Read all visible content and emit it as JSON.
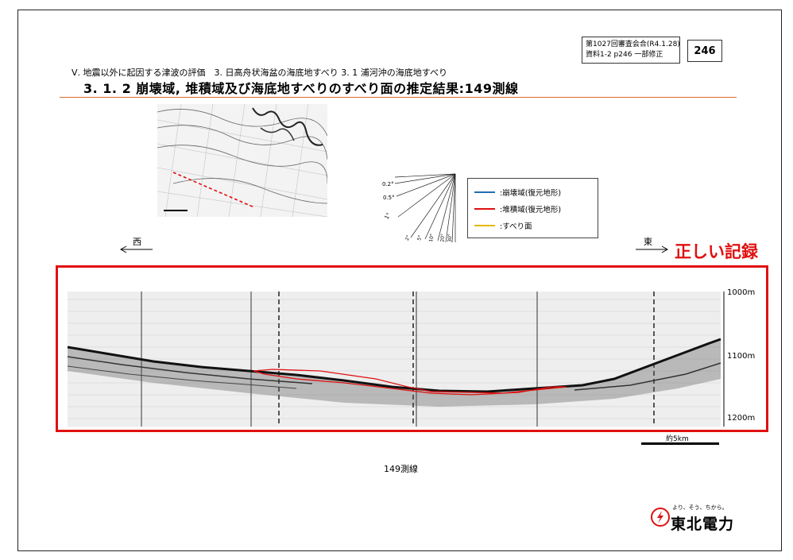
{
  "header": {
    "meeting_line1": "第1027回審査会合(R4.1.28)",
    "meeting_line2": "資料1-2 p246 一部修正",
    "page_number": "246",
    "breadcrumb": "Ⅴ. 地震以外に起因する津波の評価　3. 日高舟状海盆の海底地すべり 3. 1 浦河沖の海底地すべり",
    "title": "3. 1. 2 崩壊域, 堆積域及び海底地すべりのすべり面の推定結果:149測線"
  },
  "slope_fan": {
    "labels": [
      "0.2°",
      "0.5°",
      "1°",
      "2°",
      "5°",
      "10°",
      "20°",
      "30°"
    ]
  },
  "legend": {
    "items": [
      {
        "label": ":崩壊域(復元地形)",
        "color": "#1f6fb5"
      },
      {
        "label": ":堆積域(復元地形)",
        "color": "#e01010"
      },
      {
        "label": ":すべり面",
        "color": "#e8b800"
      }
    ]
  },
  "directions": {
    "west": "西",
    "east": "東"
  },
  "annotation": {
    "correct_record": "正しい記録"
  },
  "profile": {
    "depth_labels": [
      "1000m",
      "1100m",
      "1200m"
    ],
    "scale_label": "約5km"
  },
  "caption": "149測線",
  "logo": {
    "tagline": "より、そう、ちから。",
    "company": "東北電力"
  },
  "colors": {
    "accent_red": "#e01010",
    "title_rule": "#e06a2a"
  }
}
